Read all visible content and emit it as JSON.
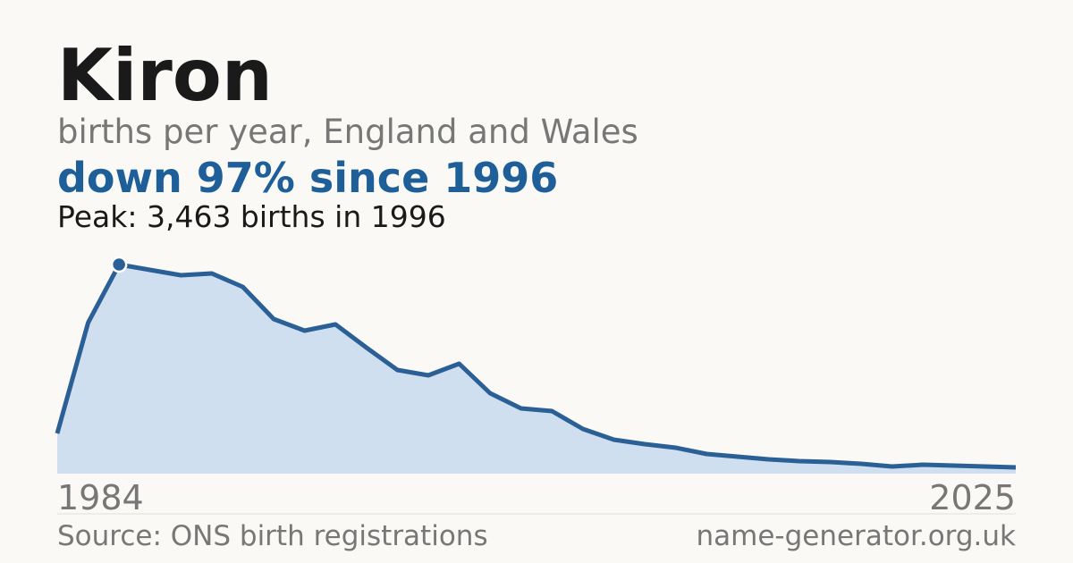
{
  "chart_data": {
    "type": "area",
    "title": "Kiron",
    "subtitle": "births per year, England and Wales",
    "headline": "down 97% since 1996",
    "peak_note": "Peak: 3,463 births in 1996",
    "x_labels": [
      "1984",
      "2025"
    ],
    "values": [
      666,
      2501,
      3463,
      3374,
      3285,
      3315,
      3093,
      2560,
      2368,
      2471,
      2087,
      1717,
      1628,
      1820,
      1332,
      1080,
      1036,
      740,
      562,
      488,
      429,
      326,
      281,
      237,
      207,
      192,
      163,
      118,
      148,
      133,
      118,
      104
    ],
    "color": "#2b6097",
    "fill_color": "#d0dfef",
    "source": "Source: ONS birth registrations",
    "site": "name-generator.org.uk"
  }
}
